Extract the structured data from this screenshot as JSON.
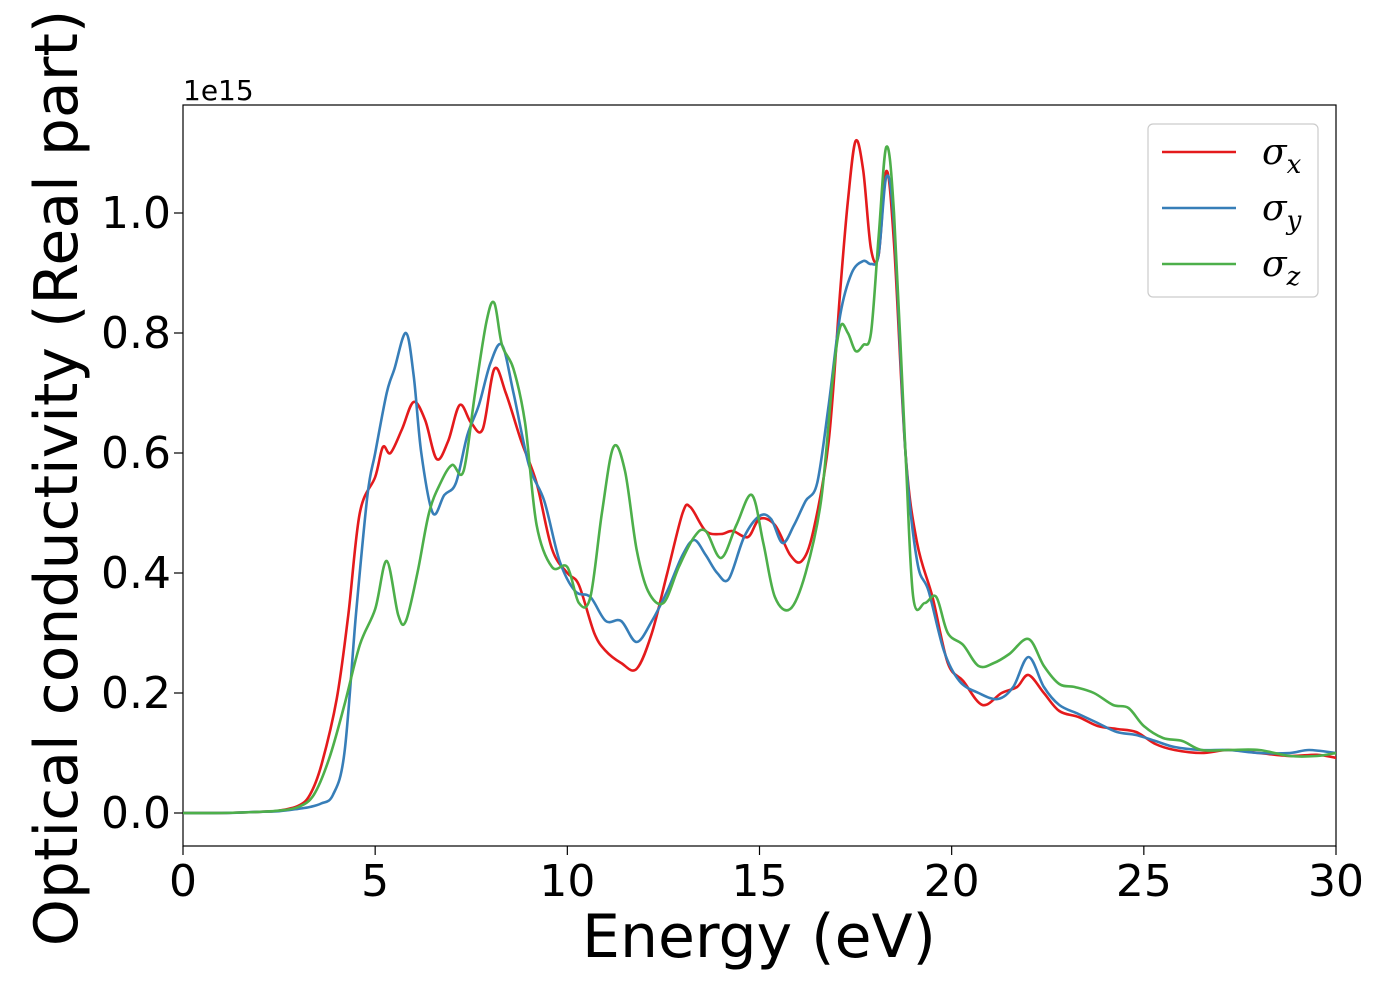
{
  "chart_data": {
    "type": "line",
    "xlabel": "Energy (eV)",
    "ylabel": "Optical conductivity (Real part)",
    "y_offset_text": "1e15",
    "xlim": [
      0,
      30
    ],
    "ylim": [
      -0.055,
      1.18
    ],
    "x_ticks": [
      0,
      5,
      10,
      15,
      20,
      25,
      30
    ],
    "x_tick_labels": [
      "0",
      "5",
      "10",
      "15",
      "20",
      "25",
      "30"
    ],
    "y_ticks": [
      0.0,
      0.2,
      0.4,
      0.6,
      0.8,
      1.0
    ],
    "y_tick_labels": [
      "0.0",
      "0.2",
      "0.4",
      "0.6",
      "0.8",
      "1.0"
    ],
    "grid": false,
    "legend_position": "top-right",
    "series": [
      {
        "name": "σx",
        "label_base": "σ",
        "label_sub": "x",
        "color": "#e41a1c",
        "x": [
          0,
          1,
          2,
          2.5,
          3,
          3.3,
          3.6,
          4,
          4.3,
          4.6,
          5,
          5.2,
          5.4,
          5.7,
          6,
          6.3,
          6.6,
          6.9,
          7.2,
          7.5,
          7.8,
          8.1,
          8.4,
          8.8,
          9.2,
          9.6,
          10,
          10.3,
          10.7,
          11,
          11.4,
          11.8,
          12.2,
          12.6,
          13,
          13.2,
          13.6,
          14,
          14.3,
          14.7,
          15,
          15.4,
          15.8,
          16.1,
          16.4,
          16.8,
          17.1,
          17.3,
          17.5,
          17.7,
          17.9,
          18.1,
          18.3,
          18.5,
          18.8,
          19.1,
          19.5,
          19.9,
          20.3,
          20.8,
          21.3,
          21.7,
          22,
          22.4,
          22.8,
          23.3,
          23.8,
          24.3,
          24.8,
          25.3,
          25.8,
          26.5,
          27.2,
          28,
          28.8,
          29.5,
          30
        ],
        "y": [
          0,
          0,
          0.002,
          0.004,
          0.012,
          0.03,
          0.08,
          0.19,
          0.33,
          0.5,
          0.56,
          0.61,
          0.6,
          0.64,
          0.685,
          0.655,
          0.59,
          0.62,
          0.68,
          0.65,
          0.64,
          0.74,
          0.7,
          0.62,
          0.55,
          0.44,
          0.4,
          0.38,
          0.3,
          0.27,
          0.25,
          0.24,
          0.3,
          0.4,
          0.5,
          0.51,
          0.47,
          0.465,
          0.47,
          0.46,
          0.49,
          0.48,
          0.43,
          0.42,
          0.47,
          0.62,
          0.87,
          1.02,
          1.12,
          1.07,
          0.94,
          0.93,
          1.07,
          0.95,
          0.6,
          0.45,
          0.36,
          0.25,
          0.22,
          0.18,
          0.2,
          0.21,
          0.23,
          0.2,
          0.17,
          0.16,
          0.145,
          0.14,
          0.135,
          0.115,
          0.105,
          0.1,
          0.105,
          0.1,
          0.095,
          0.097,
          0.092
        ]
      },
      {
        "name": "σy",
        "label_base": "σ",
        "label_sub": "y",
        "color": "#377eb8",
        "x": [
          0,
          1,
          2,
          2.5,
          3,
          3.3,
          3.6,
          3.9,
          4.2,
          4.5,
          4.8,
          5,
          5.3,
          5.5,
          5.8,
          6,
          6.2,
          6.5,
          6.8,
          7.1,
          7.4,
          7.7,
          8,
          8.3,
          8.6,
          9,
          9.4,
          9.8,
          10.2,
          10.6,
          11,
          11.4,
          11.8,
          12.2,
          12.6,
          13,
          13.3,
          13.6,
          13.9,
          14.2,
          14.6,
          15,
          15.3,
          15.6,
          15.9,
          16.2,
          16.5,
          16.8,
          17.1,
          17.4,
          17.7,
          17.9,
          18.1,
          18.3,
          18.5,
          18.8,
          19.1,
          19.4,
          19.8,
          20.2,
          20.7,
          21.2,
          21.6,
          22,
          22.4,
          22.8,
          23.3,
          23.8,
          24.3,
          24.8,
          25.3,
          25.8,
          26.5,
          27.2,
          28,
          28.8,
          29.3,
          30
        ],
        "y": [
          0,
          0,
          0.002,
          0.003,
          0.007,
          0.01,
          0.016,
          0.03,
          0.1,
          0.33,
          0.53,
          0.6,
          0.7,
          0.74,
          0.8,
          0.73,
          0.6,
          0.5,
          0.53,
          0.55,
          0.63,
          0.68,
          0.75,
          0.78,
          0.7,
          0.58,
          0.52,
          0.42,
          0.37,
          0.36,
          0.32,
          0.32,
          0.285,
          0.32,
          0.37,
          0.43,
          0.455,
          0.43,
          0.4,
          0.39,
          0.46,
          0.495,
          0.49,
          0.45,
          0.48,
          0.52,
          0.55,
          0.68,
          0.83,
          0.9,
          0.92,
          0.915,
          0.93,
          1.06,
          0.98,
          0.6,
          0.42,
          0.37,
          0.27,
          0.22,
          0.2,
          0.19,
          0.21,
          0.26,
          0.21,
          0.18,
          0.165,
          0.15,
          0.135,
          0.13,
          0.12,
          0.11,
          0.105,
          0.105,
          0.1,
          0.1,
          0.105,
          0.1
        ]
      },
      {
        "name": "σz",
        "label_base": "σ",
        "label_sub": "z",
        "color": "#4daf4a",
        "x": [
          0,
          1,
          2,
          2.5,
          3,
          3.4,
          3.8,
          4.2,
          4.6,
          5,
          5.3,
          5.6,
          5.8,
          6.1,
          6.4,
          6.7,
          7,
          7.3,
          7.6,
          7.9,
          8.1,
          8.3,
          8.6,
          8.9,
          9.2,
          9.6,
          10,
          10.3,
          10.6,
          10.9,
          11.2,
          11.5,
          11.8,
          12.1,
          12.5,
          12.9,
          13.3,
          13.6,
          14,
          14.4,
          14.8,
          15.1,
          15.4,
          15.8,
          16.2,
          16.6,
          16.9,
          17.1,
          17.3,
          17.5,
          17.7,
          17.9,
          18.1,
          18.3,
          18.5,
          18.8,
          19,
          19.3,
          19.6,
          19.9,
          20.3,
          20.7,
          21.1,
          21.5,
          22,
          22.4,
          22.8,
          23.2,
          23.7,
          24.2,
          24.6,
          25,
          25.5,
          26,
          26.5,
          27.2,
          28,
          28.8,
          29.5,
          30
        ],
        "y": [
          0,
          0,
          0.002,
          0.004,
          0.01,
          0.03,
          0.09,
          0.18,
          0.28,
          0.34,
          0.42,
          0.33,
          0.32,
          0.4,
          0.5,
          0.55,
          0.58,
          0.57,
          0.7,
          0.82,
          0.85,
          0.78,
          0.74,
          0.65,
          0.48,
          0.41,
          0.41,
          0.35,
          0.36,
          0.5,
          0.61,
          0.57,
          0.44,
          0.37,
          0.35,
          0.41,
          0.46,
          0.47,
          0.425,
          0.48,
          0.53,
          0.45,
          0.36,
          0.34,
          0.4,
          0.52,
          0.72,
          0.81,
          0.8,
          0.77,
          0.78,
          0.8,
          0.96,
          1.11,
          1.0,
          0.6,
          0.36,
          0.35,
          0.36,
          0.3,
          0.28,
          0.245,
          0.25,
          0.265,
          0.29,
          0.245,
          0.215,
          0.21,
          0.2,
          0.18,
          0.175,
          0.145,
          0.125,
          0.12,
          0.105,
          0.105,
          0.105,
          0.095,
          0.095,
          0.1
        ]
      }
    ]
  }
}
